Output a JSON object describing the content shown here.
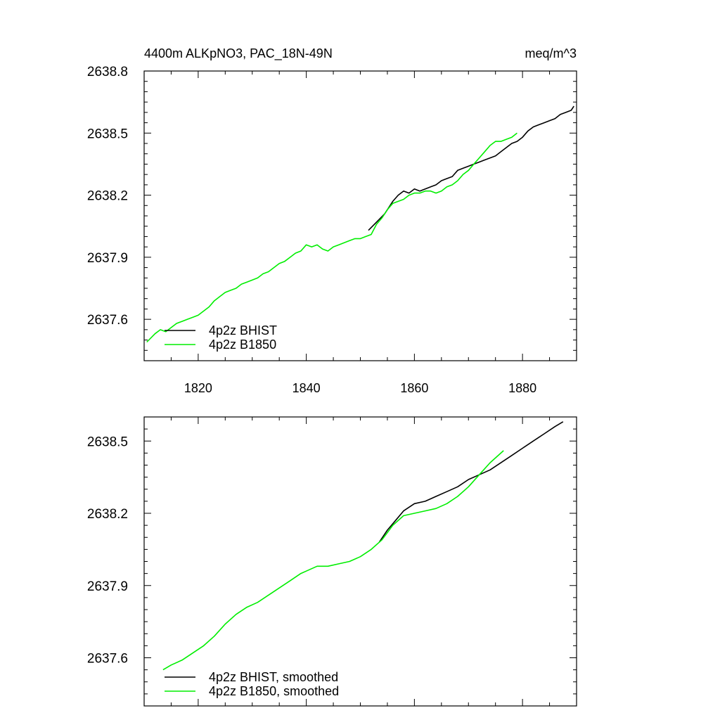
{
  "title_left": "4400m ALKpNO3, PAC_18N-49N",
  "title_right": "meq/m^3",
  "colors": {
    "bhist": "#000000",
    "b1850": "#00ee00",
    "axis": "#000000",
    "background": "#ffffff"
  },
  "chart_data": [
    {
      "type": "line",
      "title": "4400m ALKpNO3, PAC_18N-49N",
      "units": "meq/m^3",
      "xlim": [
        1810,
        1890
      ],
      "ylim": [
        2637.4,
        2638.8
      ],
      "xticks": [
        1820,
        1840,
        1860,
        1880
      ],
      "xtick_labels": [
        "1820",
        "1840",
        "1860",
        "1880"
      ],
      "xtick_labels_shown": true,
      "yticks": [
        2637.6,
        2637.9,
        2638.2,
        2638.5,
        2638.8
      ],
      "ytick_labels": [
        "2637.6",
        "2637.9",
        "2638.2",
        "2638.5",
        "2638.8"
      ],
      "legend_placement": "bottom-left",
      "series": [
        {
          "name": "4p2z BHIST",
          "color": "#000000",
          "x": [
            1851.5,
            1853,
            1854.5,
            1856,
            1857,
            1858,
            1859,
            1860,
            1861,
            1862,
            1863,
            1864,
            1865,
            1866,
            1867,
            1868,
            1869,
            1870,
            1871,
            1872,
            1873,
            1874,
            1875,
            1876,
            1877,
            1878,
            1879,
            1880,
            1881,
            1882,
            1883,
            1884,
            1885,
            1886,
            1887,
            1888,
            1889,
            1889.5
          ],
          "y": [
            2638.03,
            2638.07,
            2638.11,
            2638.17,
            2638.2,
            2638.22,
            2638.21,
            2638.23,
            2638.22,
            2638.23,
            2638.24,
            2638.25,
            2638.27,
            2638.28,
            2638.29,
            2638.32,
            2638.33,
            2638.34,
            2638.35,
            2638.36,
            2638.37,
            2638.38,
            2638.39,
            2638.41,
            2638.43,
            2638.45,
            2638.46,
            2638.48,
            2638.51,
            2638.53,
            2638.54,
            2638.55,
            2638.56,
            2638.57,
            2638.59,
            2638.6,
            2638.61,
            2638.63
          ]
        },
        {
          "name": "4p2z B1850",
          "color": "#00ee00",
          "x": [
            1810.5,
            1812,
            1813,
            1814,
            1815,
            1816,
            1817,
            1818,
            1819,
            1820,
            1821,
            1822,
            1823,
            1824,
            1825,
            1826,
            1827,
            1828,
            1829,
            1830,
            1831,
            1832,
            1833,
            1834,
            1835,
            1836,
            1837,
            1838,
            1839,
            1840,
            1841,
            1842,
            1843,
            1844,
            1845,
            1846,
            1847,
            1848,
            1849,
            1850,
            1851,
            1852,
            1853,
            1854,
            1855,
            1856,
            1857,
            1858,
            1859,
            1860,
            1861,
            1862,
            1863,
            1864,
            1865,
            1866,
            1867,
            1868,
            1869,
            1870,
            1871,
            1872,
            1873,
            1874,
            1875,
            1876,
            1877,
            1878,
            1879
          ],
          "y": [
            2637.49,
            2637.53,
            2637.55,
            2637.54,
            2637.56,
            2637.58,
            2637.59,
            2637.6,
            2637.61,
            2637.62,
            2637.64,
            2637.66,
            2637.69,
            2637.71,
            2637.73,
            2637.74,
            2637.75,
            2637.77,
            2637.78,
            2637.79,
            2637.8,
            2637.82,
            2637.83,
            2637.85,
            2637.87,
            2637.88,
            2637.9,
            2637.92,
            2637.93,
            2637.96,
            2637.95,
            2637.96,
            2637.94,
            2637.93,
            2637.95,
            2637.96,
            2637.97,
            2637.98,
            2637.99,
            2637.99,
            2638.0,
            2638.01,
            2638.06,
            2638.09,
            2638.13,
            2638.16,
            2638.17,
            2638.18,
            2638.2,
            2638.21,
            2638.21,
            2638.22,
            2638.22,
            2638.21,
            2638.22,
            2638.24,
            2638.25,
            2638.27,
            2638.3,
            2638.32,
            2638.35,
            2638.38,
            2638.41,
            2638.44,
            2638.46,
            2638.46,
            2638.47,
            2638.48,
            2638.5
          ]
        }
      ]
    },
    {
      "type": "line",
      "title": "",
      "xlim": [
        1810,
        1890
      ],
      "ylim": [
        2637.4,
        2638.6
      ],
      "xticks": [
        1820,
        1840,
        1860,
        1880
      ],
      "xtick_labels_shown": false,
      "yticks": [
        2637.6,
        2637.9,
        2638.2,
        2638.5
      ],
      "ytick_labels": [
        "2637.6",
        "2637.9",
        "2638.2",
        "2638.5"
      ],
      "legend_placement": "bottom-left",
      "series": [
        {
          "name": "4p2z BHIST, smoothed",
          "color": "#000000",
          "x": [
            1853.5,
            1855,
            1856.5,
            1858,
            1860,
            1862,
            1864,
            1866,
            1868,
            1870,
            1872,
            1874,
            1876,
            1878,
            1880,
            1882,
            1884,
            1886,
            1887.5
          ],
          "y": [
            2638.08,
            2638.13,
            2638.17,
            2638.21,
            2638.24,
            2638.25,
            2638.27,
            2638.29,
            2638.31,
            2638.34,
            2638.36,
            2638.38,
            2638.41,
            2638.44,
            2638.47,
            2638.5,
            2638.53,
            2638.56,
            2638.58
          ]
        },
        {
          "name": "4p2z B1850, smoothed",
          "color": "#00ee00",
          "x": [
            1813.5,
            1815,
            1817,
            1819,
            1821,
            1823,
            1825,
            1827,
            1829,
            1831,
            1833,
            1835,
            1837,
            1839,
            1840,
            1842,
            1844,
            1846,
            1848,
            1850,
            1852,
            1854,
            1856,
            1858,
            1860,
            1862,
            1864,
            1866,
            1868,
            1870,
            1872,
            1874,
            1876.5
          ],
          "y": [
            2637.55,
            2637.57,
            2637.59,
            2637.62,
            2637.65,
            2637.69,
            2637.74,
            2637.78,
            2637.81,
            2637.83,
            2637.86,
            2637.89,
            2637.92,
            2637.95,
            2637.96,
            2637.98,
            2637.98,
            2637.99,
            2638.0,
            2638.02,
            2638.05,
            2638.09,
            2638.15,
            2638.19,
            2638.2,
            2638.21,
            2638.22,
            2638.24,
            2638.27,
            2638.31,
            2638.36,
            2638.41,
            2638.46
          ]
        }
      ]
    }
  ]
}
